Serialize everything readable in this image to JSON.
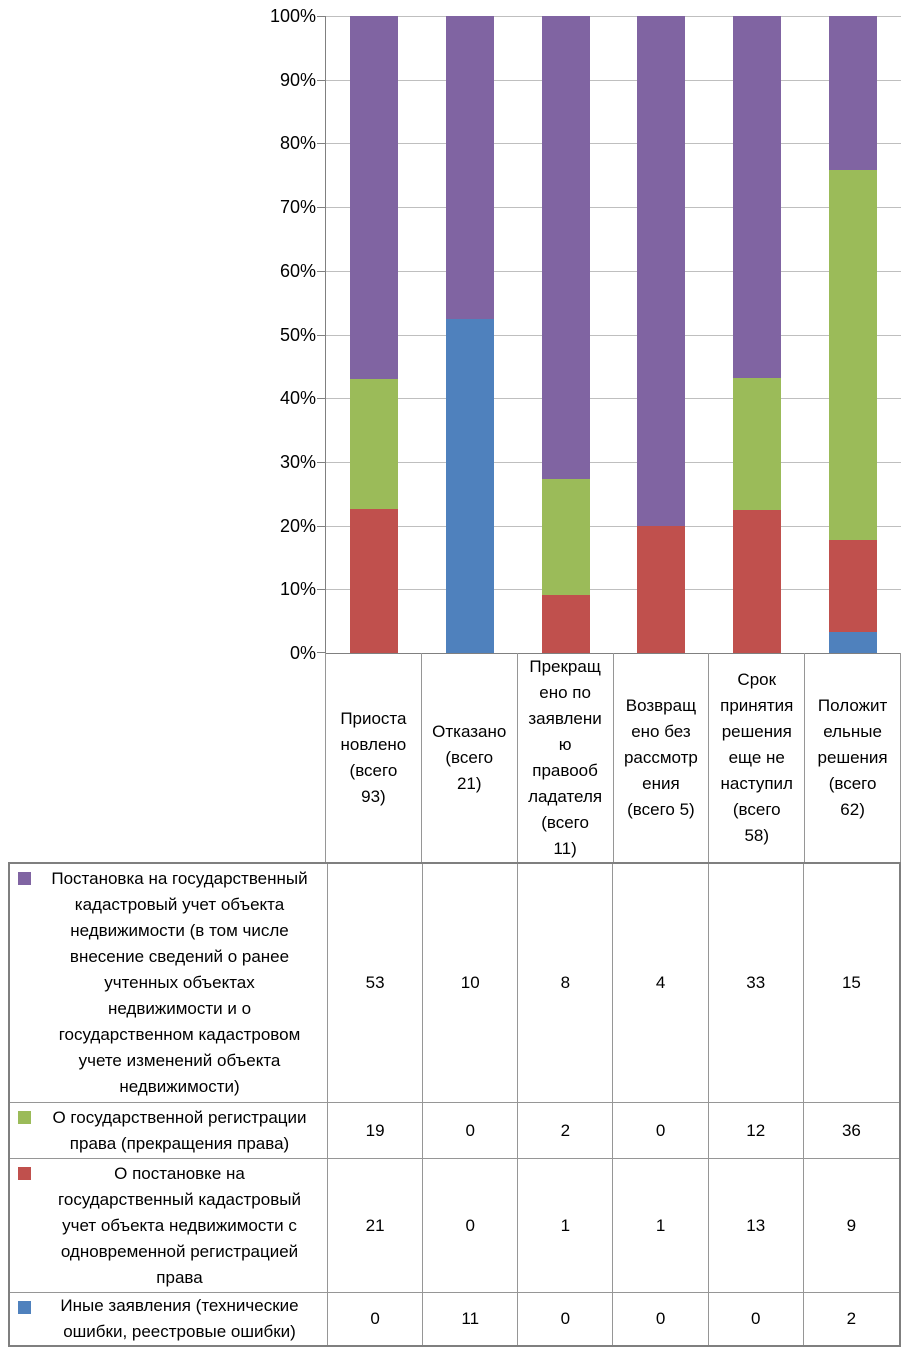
{
  "chart_data": {
    "type": "bar",
    "subtype": "100-percent-stacked-column-with-data-table",
    "title": "",
    "xlabel": "",
    "ylabel": "",
    "grid": true,
    "legend_position": "left-of-data-table",
    "categories": [
      "Приостановлено (всего 93)",
      "Отказано (всего 21)",
      "Прекращено по заявлению правообладателя (всего 11)",
      "Возвращено без рассмотрения (всего 5)",
      "Срок принятия решения еще не наступил (всего 58)",
      "Положительные решения (всего 62)"
    ],
    "categories_display": [
      "Приоста\nновлено\n(всего\n93)",
      "Отказано\n(всего\n21)",
      "Прекращ\nено по\nзаявлени\nю\nправооб\nладателя\n(всего\n11)",
      "Возвращ\nено без\nрассмотр\nения\n(всего 5)",
      "Срок\nпринятия\nрешения\nеще не\nнаступил\n(всего\n58)",
      "Положит\nельные\nрешения\n(всего\n62)"
    ],
    "totals": [
      93,
      21,
      11,
      5,
      58,
      62
    ],
    "series": [
      {
        "name": "Постановка на государственный кадастровый учет объекта недвижимости (в том числе внесение сведений о ранее учтенных объектах недвижимости и о государственном кадастровом учете изменений объекта недвижимости)",
        "color": "#8064A2",
        "values": [
          53,
          10,
          8,
          4,
          33,
          15
        ]
      },
      {
        "name": "О государственной регистрации права (прекращения права)",
        "color": "#9BBB59",
        "values": [
          19,
          0,
          2,
          0,
          12,
          36
        ]
      },
      {
        "name": "О постановке на государственный кадастровый учет объекта недвижимости с одновременной регистрацией права",
        "color": "#C0504D",
        "values": [
          21,
          0,
          1,
          1,
          13,
          9
        ]
      },
      {
        "name": "Иные заявления (технические ошибки, реестровые ошибки)",
        "color": "#4F81BD",
        "values": [
          0,
          11,
          0,
          0,
          0,
          2
        ]
      }
    ],
    "stack_order_bottom_to_top": [
      3,
      2,
      1,
      0
    ],
    "y_axis": {
      "min": 0,
      "max": 100,
      "step": 10,
      "tick_labels": [
        "0%",
        "10%",
        "20%",
        "30%",
        "40%",
        "50%",
        "60%",
        "70%",
        "80%",
        "90%",
        "100%"
      ]
    }
  },
  "table": {
    "rows": [
      {
        "legend_color": "#8064A2",
        "label_display": "Постановка на государственный\nкадастровый учет объекта\nнедвижимости (в том числе\nвнесение сведений о ранее\nучтенных объектах\nнедвижимости и о\nгосударственном кадастровом\nучете изменений объекта\nнедвижимости)",
        "values": [
          53,
          10,
          8,
          4,
          33,
          15
        ]
      },
      {
        "legend_color": "#9BBB59",
        "label_display": "О государственной регистрации\nправа (прекращения права)",
        "values": [
          19,
          0,
          2,
          0,
          12,
          36
        ]
      },
      {
        "legend_color": "#C0504D",
        "label_display": "О постановке на\nгосударственный кадастровый\nучет объекта недвижимости с\nодновременной регистрацией\nправа",
        "values": [
          21,
          0,
          1,
          1,
          13,
          9
        ]
      },
      {
        "legend_color": "#4F81BD",
        "label_display": "Иные заявления (технические\nошибки, реестровые ошибки)",
        "values": [
          0,
          11,
          0,
          0,
          0,
          2
        ]
      }
    ]
  },
  "colors": {
    "purple": "#8064A2",
    "green": "#9BBB59",
    "red": "#C0504D",
    "blue": "#4F81BD",
    "gridline": "#BFBFBF",
    "axis": "#808080",
    "inner_border": "#969696",
    "outer_border": "#7F7F7F",
    "text": "#000000",
    "background": "#FFFFFF"
  }
}
